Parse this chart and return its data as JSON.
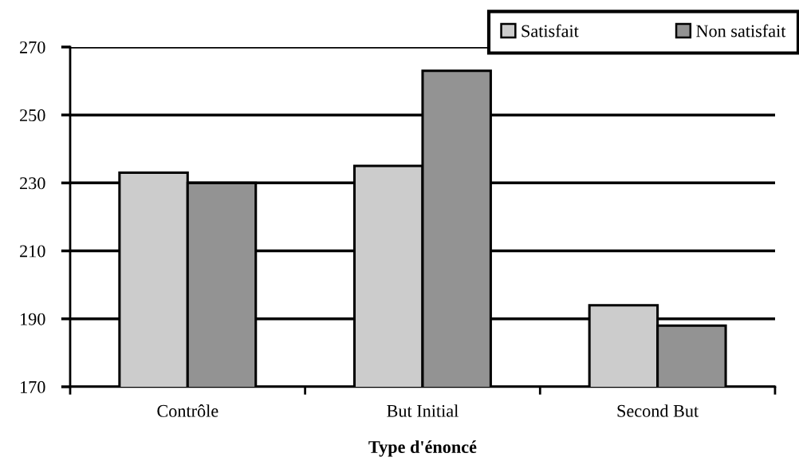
{
  "chart_data": {
    "type": "bar",
    "xlabel": "Type d'énoncé",
    "categories": [
      "Contrôle",
      "But Initial",
      "Second But"
    ],
    "series": [
      {
        "name": "Satisfait",
        "color": "#cccccc",
        "values": [
          233,
          235,
          194
        ]
      },
      {
        "name": "Non satisfait",
        "color": "#939393",
        "values": [
          230,
          263,
          188
        ]
      }
    ],
    "ylim": [
      170,
      270
    ],
    "yticks": [
      170,
      190,
      210,
      230,
      250,
      270
    ],
    "grid": "y",
    "legend": "top right"
  }
}
